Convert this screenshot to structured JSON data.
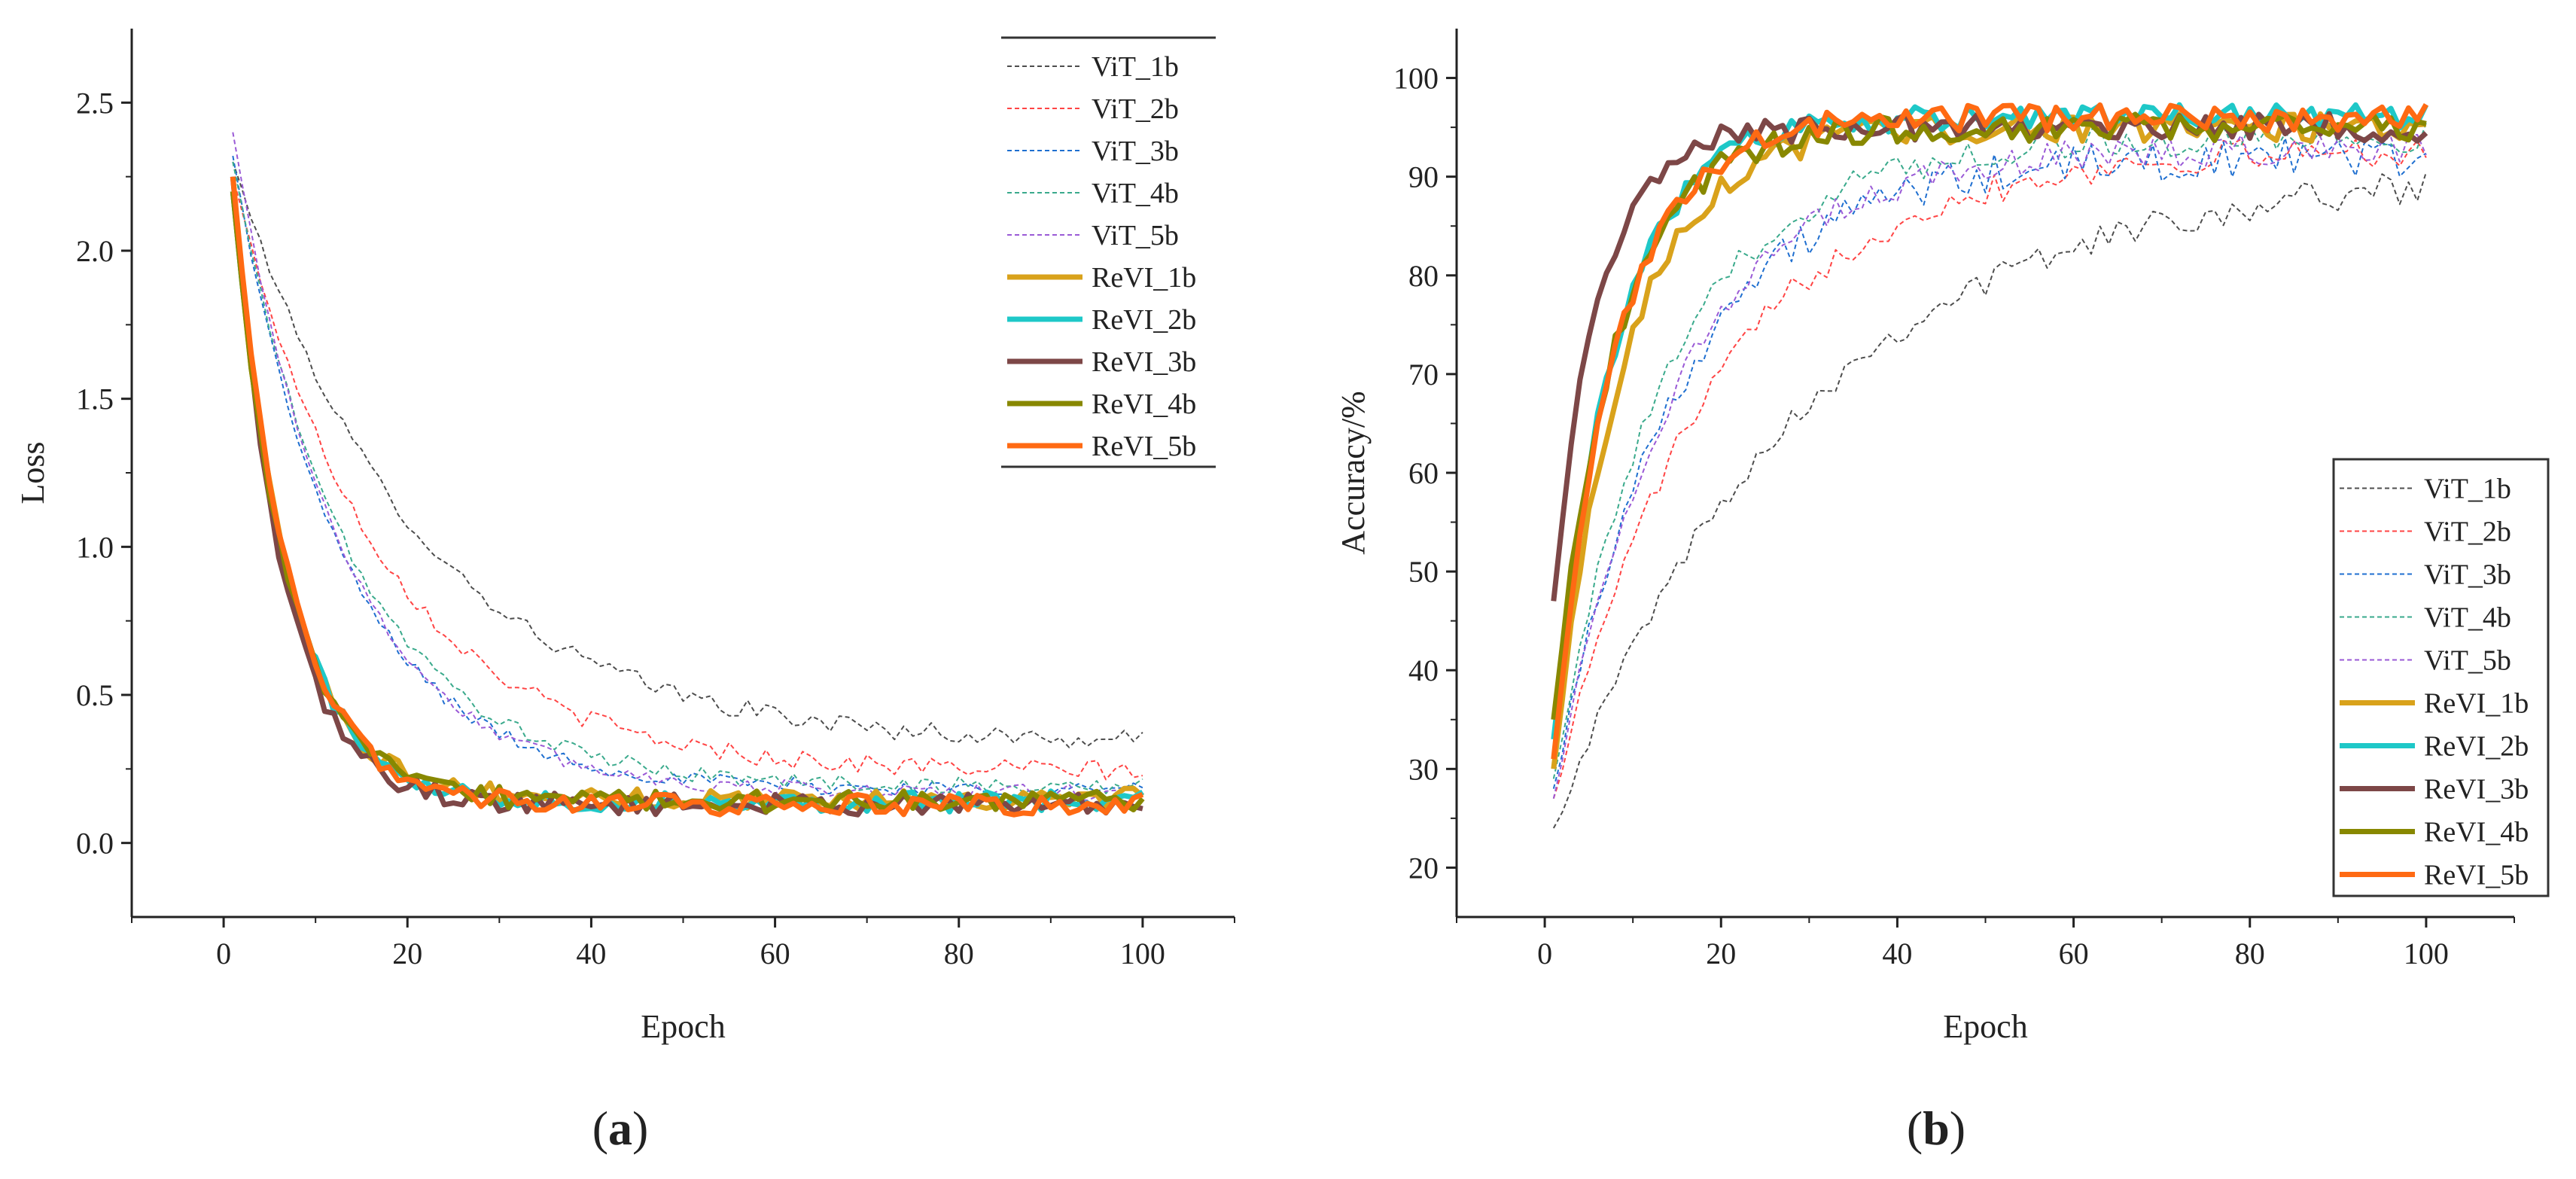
{
  "chart_data": [
    {
      "type": "line",
      "panel_label": "a",
      "title": "",
      "xlabel": "Epoch",
      "ylabel": "Loss",
      "xlim": [
        -10,
        110
      ],
      "ylim": [
        -0.25,
        2.75
      ],
      "xticks": [
        0,
        20,
        40,
        60,
        80,
        100
      ],
      "yticks": [
        0.0,
        0.5,
        1.0,
        1.5,
        2.0,
        2.5
      ],
      "ytick_labels": [
        "0.0",
        "0.5",
        "1.0",
        "1.5",
        "2.0",
        "2.5"
      ],
      "legend_position": "top-right",
      "model": {
        "kind": "decay",
        "note": "curves follow final + (start - final) * exp(-(epoch-1)/tau) with small epoch-to-epoch noise"
      },
      "series": [
        {
          "name": "ViT_1b",
          "color": "#4d4d4d",
          "width": 2,
          "dash": "6,4",
          "start": 2.3,
          "final": 0.33,
          "tau": 20,
          "noise": 0.025
        },
        {
          "name": "ViT_2b",
          "color": "#ff4444",
          "width": 2,
          "dash": "6,4",
          "start": 2.25,
          "final": 0.24,
          "tau": 16,
          "noise": 0.025
        },
        {
          "name": "ViT_3b",
          "color": "#1f6fd0",
          "width": 2,
          "dash": "6,4",
          "start": 2.32,
          "final": 0.18,
          "tau": 12,
          "noise": 0.02
        },
        {
          "name": "ViT_4b",
          "color": "#3aaa8c",
          "width": 2,
          "dash": "6,4",
          "start": 2.3,
          "final": 0.19,
          "tau": 13,
          "noise": 0.02
        },
        {
          "name": "ViT_5b",
          "color": "#9a5ad6",
          "width": 2,
          "dash": "6,4",
          "start": 2.4,
          "final": 0.17,
          "tau": 12,
          "noise": 0.02
        },
        {
          "name": "ReVI_1b",
          "color": "#d9a21b",
          "width": 7,
          "dash": "",
          "start": 2.2,
          "final": 0.15,
          "tau": 6,
          "noise": 0.025
        },
        {
          "name": "ReVI_2b",
          "color": "#1ec8c8",
          "width": 7,
          "dash": "",
          "start": 2.2,
          "final": 0.14,
          "tau": 6,
          "noise": 0.025
        },
        {
          "name": "ReVI_3b",
          "color": "#7d4747",
          "width": 7,
          "dash": "",
          "start": 2.25,
          "final": 0.13,
          "tau": 5.5,
          "noise": 0.025
        },
        {
          "name": "ReVI_4b",
          "color": "#888800",
          "width": 7,
          "dash": "",
          "start": 2.2,
          "final": 0.14,
          "tau": 6,
          "noise": 0.025
        },
        {
          "name": "ReVI_5b",
          "color": "#ff6a13",
          "width": 7,
          "dash": "",
          "start": 2.25,
          "final": 0.13,
          "tau": 6,
          "noise": 0.025
        }
      ]
    },
    {
      "type": "line",
      "panel_label": "b",
      "title": "",
      "xlabel": "Epoch",
      "ylabel": "Accuracy/%",
      "xlim": [
        -10,
        110
      ],
      "ylim": [
        15,
        105
      ],
      "xticks": [
        0,
        20,
        40,
        60,
        80,
        100
      ],
      "yticks": [
        20,
        30,
        40,
        50,
        60,
        70,
        80,
        90,
        100
      ],
      "ytick_labels": [
        "20",
        "30",
        "40",
        "50",
        "60",
        "70",
        "80",
        "90",
        "100"
      ],
      "legend_position": "bottom-right",
      "model": {
        "kind": "rise",
        "note": "curves follow final - (final - start) * exp(-(epoch-1)/tau) with small epoch-to-epoch noise"
      },
      "series": [
        {
          "name": "ViT_1b",
          "color": "#4d4d4d",
          "width": 2,
          "dash": "6,4",
          "start": 24,
          "final": 91,
          "tau": 28,
          "noise": 1.2
        },
        {
          "name": "ViT_2b",
          "color": "#ff4444",
          "width": 2,
          "dash": "6,4",
          "start": 27,
          "final": 93,
          "tau": 18,
          "noise": 1.2
        },
        {
          "name": "ViT_3b",
          "color": "#1f6fd0",
          "width": 2,
          "dash": "6,4",
          "start": 28,
          "final": 92,
          "tau": 14,
          "noise": 1.5
        },
        {
          "name": "ViT_4b",
          "color": "#3aaa8c",
          "width": 2,
          "dash": "6,4",
          "start": 29,
          "final": 94,
          "tau": 13,
          "noise": 1.2
        },
        {
          "name": "ViT_5b",
          "color": "#9a5ad6",
          "width": 2,
          "dash": "6,4",
          "start": 27,
          "final": 93,
          "tau": 14,
          "noise": 1.2
        },
        {
          "name": "ReVI_1b",
          "color": "#d9a21b",
          "width": 7,
          "dash": "",
          "start": 30,
          "final": 95,
          "tau": 8,
          "noise": 1.0
        },
        {
          "name": "ReVI_2b",
          "color": "#1ec8c8",
          "width": 7,
          "dash": "",
          "start": 33,
          "final": 96,
          "tau": 7,
          "noise": 1.0
        },
        {
          "name": "ReVI_3b",
          "color": "#7d4747",
          "width": 7,
          "dash": "",
          "start": 47,
          "final": 95,
          "tau": 5,
          "noise": 1.0
        },
        {
          "name": "ReVI_4b",
          "color": "#888800",
          "width": 7,
          "dash": "",
          "start": 35,
          "final": 95,
          "tau": 7,
          "noise": 1.0
        },
        {
          "name": "ReVI_5b",
          "color": "#ff6a13",
          "width": 7,
          "dash": "",
          "start": 31,
          "final": 96,
          "tau": 7,
          "noise": 1.0
        }
      ]
    }
  ]
}
